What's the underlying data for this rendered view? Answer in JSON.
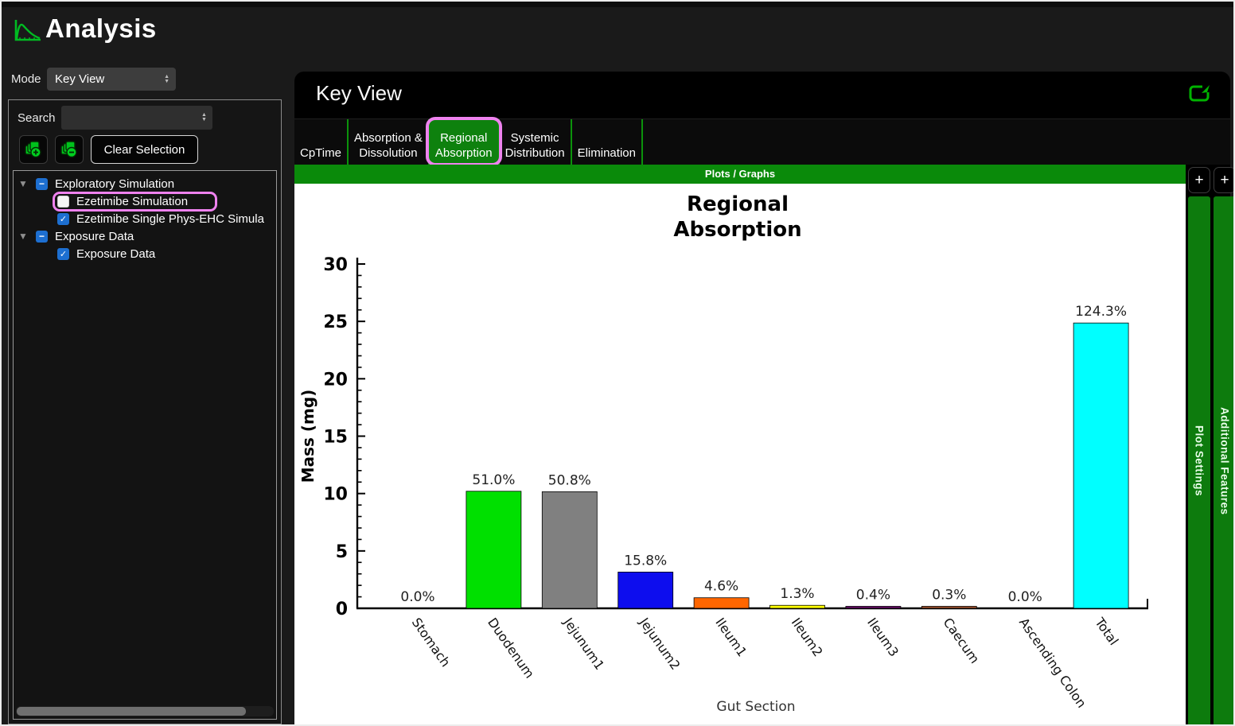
{
  "app": {
    "title": "Analysis"
  },
  "sidebar": {
    "mode": {
      "label": "Mode",
      "value": "Key View"
    },
    "search": {
      "label": "Search",
      "value": ""
    },
    "buttons": {
      "clear": "Clear Selection"
    },
    "tree": [
      {
        "label": "Exploratory Simulation",
        "expanded": true,
        "checkbox": "partial",
        "children": [
          {
            "label": "Ezetimibe Simulation",
            "checkbox": "unchecked",
            "highlighted": true
          },
          {
            "label": "Ezetimibe Single Phys-EHC Simula",
            "checkbox": "checked"
          }
        ]
      },
      {
        "label": "Exposure Data",
        "expanded": true,
        "checkbox": "partial",
        "children": [
          {
            "label": "Exposure Data",
            "checkbox": "checked"
          }
        ]
      }
    ]
  },
  "main": {
    "title": "Key View",
    "tabs": [
      {
        "label": "CpTime",
        "selected": false
      },
      {
        "label": "Absorption &\nDissolution",
        "selected": false
      },
      {
        "label": "Regional\nAbsorption",
        "selected": true,
        "highlighted": true
      },
      {
        "label": "Systemic\nDistribution",
        "selected": false
      },
      {
        "label": "Elimination",
        "selected": false
      }
    ],
    "section_bar": "Plots / Graphs",
    "side_panels": [
      {
        "label": "Plot Settings",
        "button": "+"
      },
      {
        "label": "Additional Features",
        "button": "+"
      }
    ]
  },
  "chart_data": {
    "type": "bar",
    "title": [
      "Regional",
      "Absorption"
    ],
    "xlabel": "Gut Section",
    "ylabel": "Mass (mg)",
    "ylim": [
      0,
      30
    ],
    "yticks": [
      0,
      5,
      10,
      15,
      20,
      25,
      30
    ],
    "minor_tick_step": 1,
    "grid": false,
    "legend": "none",
    "categories": [
      "Stomach",
      "Duodenum",
      "Jejunum1",
      "Jejunum2",
      "Ileum1",
      "Ileum2",
      "Ileum3",
      "Caecum",
      "Ascending Colon",
      "Total"
    ],
    "values_mg": [
      0.0,
      10.2,
      10.16,
      3.16,
      0.92,
      0.26,
      0.08,
      0.06,
      0.0,
      24.86
    ],
    "bar_labels_pct": [
      "0.0%",
      "51.0%",
      "50.8%",
      "15.8%",
      "4.6%",
      "1.3%",
      "0.4%",
      "0.3%",
      "0.0%",
      "124.3%"
    ],
    "bar_colors": [
      "#00e000",
      "#00e000",
      "#808080",
      "#0d0dee",
      "#ff6600",
      "#ffff00",
      "#6a0d6a",
      "#a0522d",
      "#00e000",
      "#00ffff"
    ]
  },
  "colors": {
    "accent_green": "#0a8a0a",
    "tab_selected_green": "#0e810e",
    "highlight_pink": "#ef82ef",
    "checkbox_blue": "#1d6fd1",
    "icon_green": "#00bb22"
  }
}
